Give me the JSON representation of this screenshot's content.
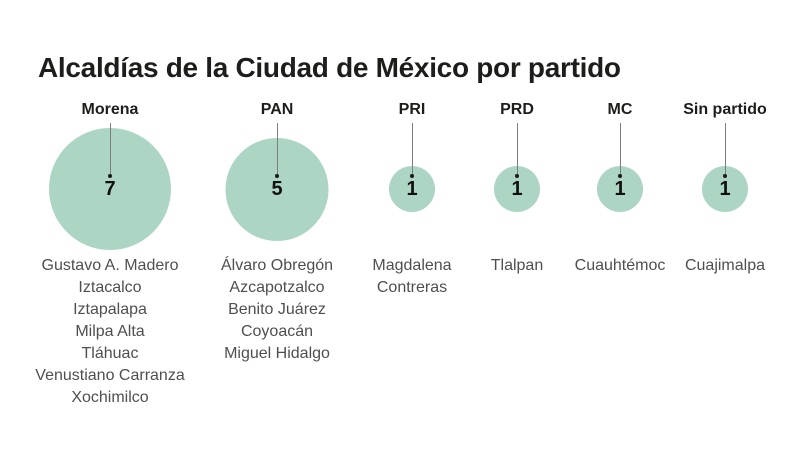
{
  "title": "Alcaldías de la Ciudad de México por partido",
  "chart_data": {
    "type": "bubble",
    "title": "Alcaldías de la Ciudad de México por partido",
    "sizing": "circle area proportional to count",
    "bubble_color": "#acd5c3",
    "categories": [
      "Morena",
      "PAN",
      "PRI",
      "PRD",
      "MC",
      "Sin partido"
    ],
    "values": [
      7,
      5,
      1,
      1,
      1,
      1
    ],
    "parties": [
      {
        "name": "Morena",
        "count": "7",
        "alcaldias": [
          "Gustavo A. Madero",
          "Iztacalco",
          "Iztapalapa",
          "Milpa Alta",
          "Tláhuac",
          "Venustiano Carranza",
          "Xochimilco"
        ]
      },
      {
        "name": "PAN",
        "count": "5",
        "alcaldias": [
          "Álvaro Obregón",
          "Azcapotzalco",
          "Benito Juárez",
          "Coyoacán",
          "Miguel Hidalgo"
        ]
      },
      {
        "name": "PRI",
        "count": "1",
        "alcaldias": [
          "Magdalena Contreras"
        ]
      },
      {
        "name": "PRD",
        "count": "1",
        "alcaldias": [
          "Tlalpan"
        ]
      },
      {
        "name": "MC",
        "count": "1",
        "alcaldias": [
          "Cuauhtémoc"
        ]
      },
      {
        "name": "Sin partido",
        "count": "1",
        "alcaldias": [
          "Cuajimalpa"
        ]
      }
    ]
  }
}
